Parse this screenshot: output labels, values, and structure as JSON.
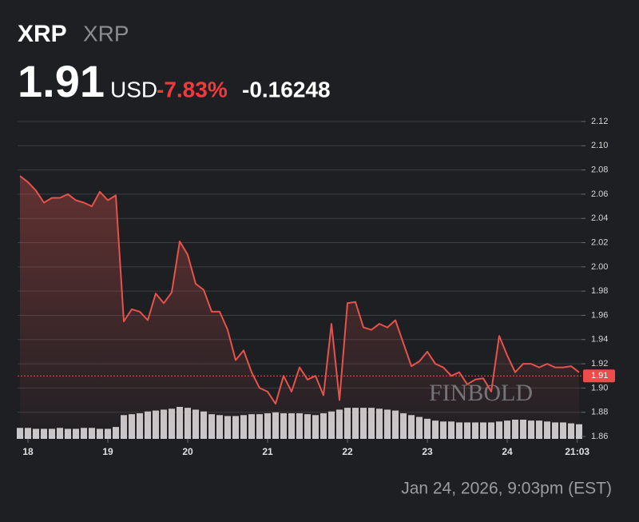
{
  "header": {
    "symbol": "XRP",
    "name": "XRP",
    "price": "1.91",
    "currency": "USD",
    "change_pct": "-7.83%",
    "change": "-0.16248"
  },
  "timestamp": "Jan 24, 2026, 9:03pm (EST)",
  "watermark": "FINBOLD",
  "chart_data": {
    "type": "line",
    "x": [
      17.9,
      18.0,
      18.1,
      18.2,
      18.3,
      18.4,
      18.5,
      18.6,
      18.7,
      18.8,
      18.9,
      19.0,
      19.1,
      19.2,
      19.3,
      19.4,
      19.5,
      19.6,
      19.7,
      19.8,
      19.9,
      20.0,
      20.1,
      20.2,
      20.3,
      20.4,
      20.5,
      20.6,
      20.7,
      20.8,
      20.9,
      21.0,
      21.1,
      21.2,
      21.3,
      21.4,
      21.5,
      21.6,
      21.7,
      21.8,
      21.9,
      22.0,
      22.1,
      22.2,
      22.3,
      22.4,
      22.5,
      22.6,
      22.7,
      22.8,
      22.9,
      23.0,
      23.1,
      23.2,
      23.3,
      23.4,
      23.5,
      23.6,
      23.7,
      23.8,
      23.9,
      24.0,
      24.1,
      24.2,
      24.3,
      24.4,
      24.5,
      24.6,
      24.7,
      24.8,
      24.9
    ],
    "series": [
      {
        "color": "#e5534b",
        "values": [
          2.075,
          2.07,
          2.063,
          2.053,
          2.057,
          2.057,
          2.06,
          2.055,
          2.053,
          2.05,
          2.062,
          2.055,
          2.059,
          1.955,
          1.965,
          1.963,
          1.956,
          1.978,
          1.97,
          1.979,
          2.021,
          2.01,
          1.986,
          1.981,
          1.963,
          1.963,
          1.948,
          1.923,
          1.931,
          1.913,
          1.9,
          1.897,
          1.887,
          1.91,
          1.897,
          1.917,
          1.907,
          1.91,
          1.894,
          1.953,
          1.89,
          1.97,
          1.971,
          1.95,
          1.948,
          1.953,
          1.95,
          1.956,
          1.937,
          1.918,
          1.922,
          1.93,
          1.92,
          1.917,
          1.91,
          1.913,
          1.903,
          1.907,
          1.908,
          1.897,
          1.943,
          1.927,
          1.913,
          1.92,
          1.92,
          1.917,
          1.92,
          1.917,
          1.917,
          1.918,
          1.913
        ]
      }
    ],
    "volume": {
      "color": "#c9c9cb",
      "values": [
        12,
        12,
        11,
        11,
        11,
        12,
        11,
        11,
        12,
        12,
        11,
        11,
        13,
        26,
        27,
        28,
        30,
        31,
        32,
        33,
        35,
        34,
        32,
        30,
        27,
        26,
        25,
        25,
        26,
        27,
        27,
        28,
        29,
        28,
        28,
        28,
        27,
        26,
        28,
        30,
        32,
        34,
        34,
        34,
        34,
        33,
        32,
        31,
        28,
        26,
        24,
        22,
        20,
        19,
        19,
        18,
        18,
        18,
        18,
        18,
        19,
        20,
        21,
        21,
        20,
        20,
        19,
        18,
        18,
        17,
        16
      ]
    },
    "xlim": [
      17.87,
      24.93
    ],
    "ylim": [
      1.86,
      2.12
    ],
    "xticks": [
      18,
      19,
      20,
      21,
      22,
      23,
      24,
      {
        "value": 24.877,
        "label": "21:03"
      }
    ],
    "yticks": [
      1.86,
      1.88,
      {
        "value": 1.9,
        "label": "1.90"
      },
      1.92,
      1.94,
      1.96,
      1.98,
      {
        "value": 2.0,
        "label": "2.00"
      },
      2.02,
      2.04,
      2.06,
      2.08,
      {
        "value": 2.1,
        "label": "2.10"
      },
      2.12
    ],
    "price_marker": 1.91,
    "grid": true
  }
}
